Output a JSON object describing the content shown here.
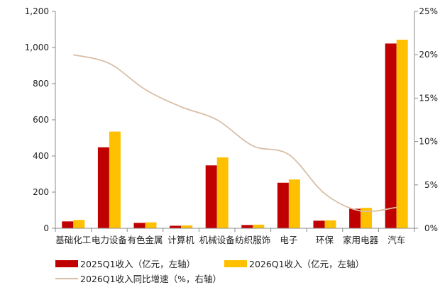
{
  "chart_data": {
    "type": "bar",
    "categories": [
      "基础化工",
      "电力设备",
      "有色金属",
      "计算机",
      "机械设备",
      "纺织服饰",
      "电子",
      "环保",
      "家用电器",
      "汽车"
    ],
    "series": [
      {
        "name": "2025Q1收入（亿元，左轴）",
        "type": "bar",
        "axis": "left",
        "color": "#c00000",
        "values": [
          38,
          448,
          30,
          14,
          348,
          18,
          252,
          42,
          108,
          1022
        ]
      },
      {
        "name": "2026Q1收入（亿元，左轴）",
        "type": "bar",
        "axis": "left",
        "color": "#ffc000",
        "values": [
          46,
          535,
          33,
          16,
          392,
          20,
          270,
          44,
          113,
          1043
        ]
      },
      {
        "name": "2026Q1收入同比增速（%，右轴）",
        "type": "line",
        "axis": "right",
        "color": "#d8bfa6",
        "values": [
          20.0,
          19.0,
          16.0,
          14.0,
          12.5,
          9.5,
          8.5,
          4.0,
          2.0,
          2.4
        ]
      }
    ],
    "left_axis": {
      "ylim": [
        0,
        1200
      ],
      "ticks": [
        "0",
        "200",
        "400",
        "600",
        "800",
        "1,000",
        "1,200"
      ]
    },
    "right_axis": {
      "ylim": [
        0,
        25
      ],
      "ticks": [
        "0%",
        "5%",
        "10%",
        "15%",
        "20%",
        "25%"
      ]
    },
    "grid": false,
    "legend_position": "bottom"
  }
}
